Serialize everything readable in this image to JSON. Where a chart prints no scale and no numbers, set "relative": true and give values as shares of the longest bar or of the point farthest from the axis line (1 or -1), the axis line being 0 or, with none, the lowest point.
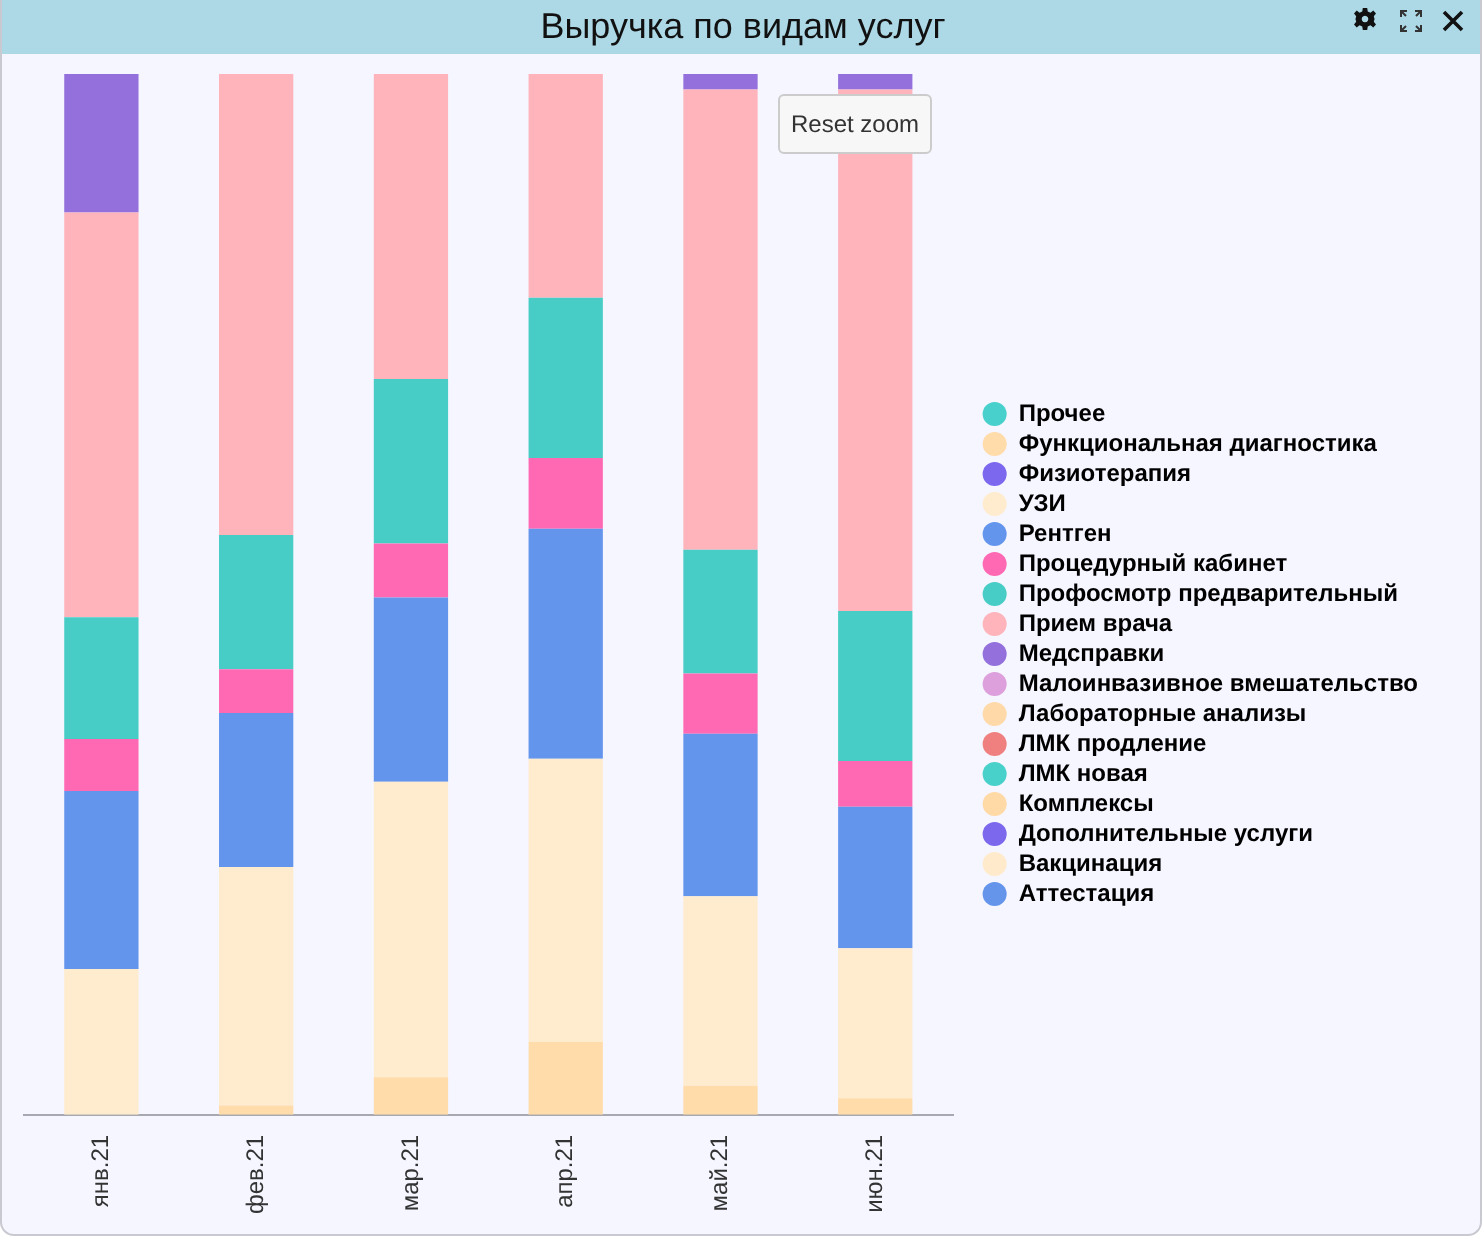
{
  "chart_data": {
    "type": "bar",
    "title": "Выручка по видам услуг",
    "categories": [
      "янв.21",
      "фев.21",
      "мар.21",
      "апр.21",
      "май.21",
      "июн.21"
    ],
    "stacked": true,
    "relative": true,
    "legend": "right",
    "grid": false,
    "annotations": [
      "Reset zoom"
    ],
    "series": [
      {
        "name": "Прочее",
        "color": "#48d1cc",
        "values": [
          0,
          0,
          0,
          0,
          0,
          0
        ]
      },
      {
        "name": "Функциональная диагностика",
        "color": "#ffdcaa",
        "values": [
          0,
          0.009,
          0.036,
          0.07,
          0.028,
          0.016
        ]
      },
      {
        "name": "Физиотерапия",
        "color": "#7b68ee",
        "values": [
          0,
          0,
          0,
          0,
          0,
          0
        ]
      },
      {
        "name": "УЗИ",
        "color": "#ffebcd",
        "values": [
          0.14,
          0.229,
          0.284,
          0.272,
          0.182,
          0.144
        ]
      },
      {
        "name": "Рентген",
        "color": "#6495ed",
        "values": [
          0.171,
          0.148,
          0.177,
          0.221,
          0.156,
          0.136
        ]
      },
      {
        "name": "Процедурный кабинет",
        "color": "#ff69b4",
        "values": [
          0.05,
          0.042,
          0.052,
          0.068,
          0.058,
          0.044
        ]
      },
      {
        "name": "Профосмотр предварительный",
        "color": "#48cdc6",
        "values": [
          0.117,
          0.129,
          0.158,
          0.154,
          0.119,
          0.144
        ]
      },
      {
        "name": "Прием врача",
        "color": "#ffb3bb",
        "values": [
          0.389,
          0.443,
          0.293,
          0.215,
          0.442,
          0.501
        ]
      },
      {
        "name": "Медсправки",
        "color": "#9370db",
        "values": [
          0.133,
          0,
          0,
          0,
          0.015,
          0.015
        ]
      },
      {
        "name": "Малоинвазивное вмешательство",
        "color": "#dda0dd",
        "values": [
          0,
          0,
          0,
          0,
          0,
          0
        ]
      },
      {
        "name": "Лабораторные анализы",
        "color": "#ffdaa8",
        "values": [
          0,
          0,
          0,
          0,
          0,
          0
        ]
      },
      {
        "name": "ЛМК продление",
        "color": "#f08080",
        "values": [
          0,
          0,
          0,
          0,
          0,
          0
        ]
      },
      {
        "name": "ЛМК новая",
        "color": "#48d1ca",
        "values": [
          0,
          0,
          0,
          0,
          0,
          0
        ]
      },
      {
        "name": "Комплексы",
        "color": "#ffdaa6",
        "values": [
          0,
          0,
          0,
          0,
          0,
          0
        ]
      },
      {
        "name": "Дополнительные услуги",
        "color": "#7b68ec",
        "values": [
          0,
          0,
          0,
          0,
          0,
          0
        ]
      },
      {
        "name": "Вакцинация",
        "color": "#ffebcb",
        "values": [
          0,
          0,
          0,
          0,
          0,
          0
        ]
      },
      {
        "name": "Аттестация",
        "color": "#6495eb",
        "values": [
          0,
          0,
          0,
          0,
          0,
          0
        ]
      }
    ]
  }
}
